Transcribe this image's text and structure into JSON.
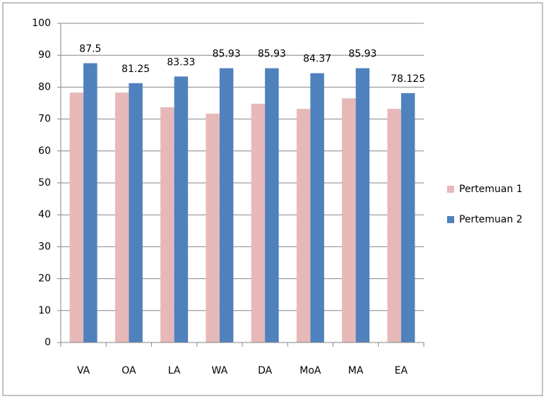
{
  "chart_data": {
    "type": "bar",
    "categories": [
      "VA",
      "OA",
      "LA",
      "WA",
      "DA",
      "MoA",
      "MA",
      "EA"
    ],
    "series": [
      {
        "name": "Pertemuan 1",
        "color": "#e6b9b8",
        "values": [
          78.3,
          78.3,
          73.7,
          71.7,
          74.8,
          73.2,
          76.5,
          73.2
        ]
      },
      {
        "name": "Pertemuan 2",
        "color": "#4f81bd",
        "values": [
          87.5,
          81.25,
          83.33,
          85.93,
          85.93,
          84.37,
          85.93,
          78.125
        ]
      }
    ],
    "ylim": [
      0,
      100
    ],
    "yticks": [
      0,
      10,
      20,
      30,
      40,
      50,
      60,
      70,
      80,
      90,
      100
    ],
    "grid": true,
    "legend": "right"
  }
}
